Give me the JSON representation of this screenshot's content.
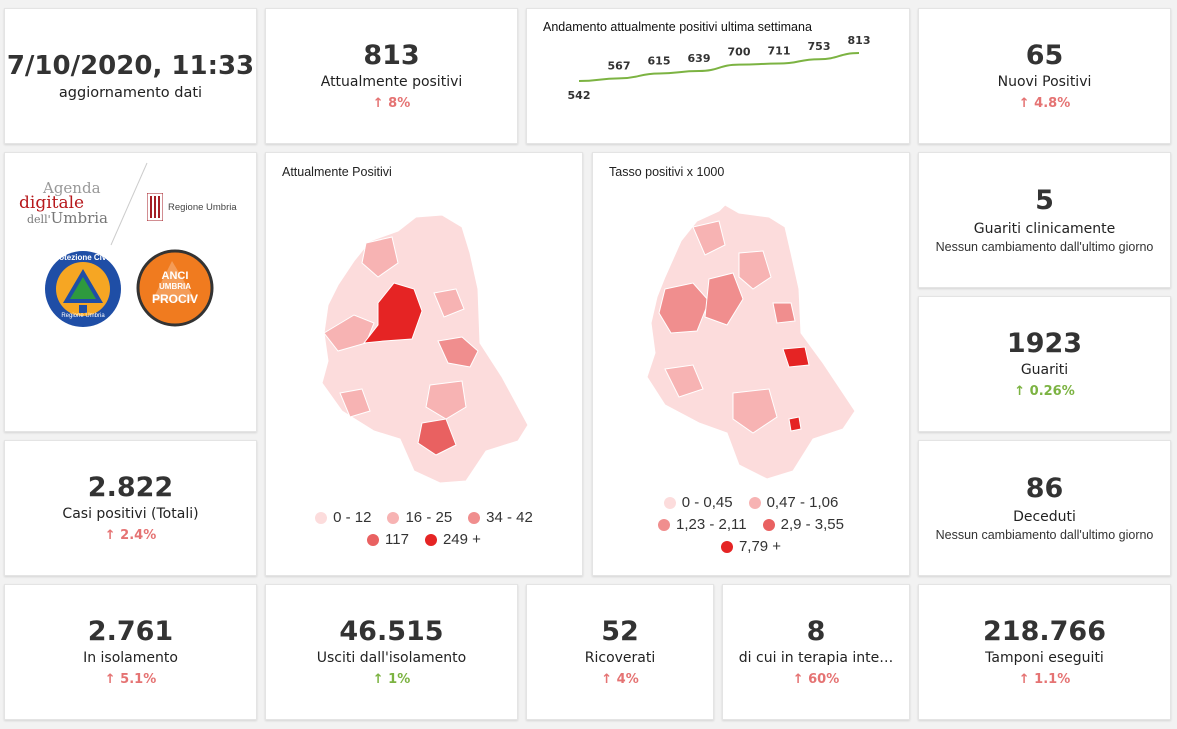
{
  "update": {
    "datetime": "7/10/2020, 11:33",
    "label": "aggiornamento dati"
  },
  "kpi": {
    "attualmente_positivi": {
      "value": "813",
      "label": "Attualmente positivi",
      "change": "↑ 8%"
    },
    "nuovi_positivi": {
      "value": "65",
      "label": "Nuovi Positivi",
      "change": "↑ 4.8%"
    },
    "guariti_clinicamente": {
      "value": "5",
      "label": "Guariti clinicamente",
      "sub": "Nessun cambiamento dall'ultimo giorno"
    },
    "guariti": {
      "value": "1923",
      "label": "Guariti",
      "change": "↑ 0.26%"
    },
    "casi_totali": {
      "value": "2.822",
      "label": "Casi positivi (Totali)",
      "change": "↑ 2.4%"
    },
    "deceduti": {
      "value": "86",
      "label": "Deceduti",
      "sub": "Nessun cambiamento dall'ultimo giorno"
    },
    "isolamento": {
      "value": "2.761",
      "label": "In isolamento",
      "change": "↑ 5.1%"
    },
    "usciti": {
      "value": "46.515",
      "label": "Usciti dall'isolamento",
      "change": "↑ 1%"
    },
    "ricoverati": {
      "value": "52",
      "label": "Ricoverati",
      "change": "↑ 4%"
    },
    "terapia": {
      "value": "8",
      "label": "di cui in terapia inte…",
      "change": "↑ 60%"
    },
    "tamponi": {
      "value": "218.766",
      "label": "Tamponi eseguiti",
      "change": "↑ 1.1%"
    }
  },
  "logos": {
    "agenda_line1": "Agenda",
    "agenda_line2": "digitale",
    "agenda_line3": "dell'",
    "agenda_line3b": "Umbria",
    "regione": "Regione Umbria",
    "protezione_top": "Protezione Civile",
    "protezione_bottom": "Regione Umbria",
    "anci_1": "ANCI",
    "anci_2": "UMBRIA",
    "anci_3": "PROCIV"
  },
  "maps": {
    "positivi": {
      "title": "Attualmente Positivi",
      "legend": [
        {
          "label": "0 - 12",
          "color": "#fcdcdc"
        },
        {
          "label": "16 - 25",
          "color": "#f7b3b3"
        },
        {
          "label": "34 - 42",
          "color": "#f08e8e"
        },
        {
          "label": "117",
          "color": "#e96161"
        },
        {
          "label": "249 +",
          "color": "#e52424"
        }
      ]
    },
    "tasso": {
      "title": "Tasso positivi x 1000",
      "legend": [
        {
          "label": "0 - 0,45",
          "color": "#fcdcdc"
        },
        {
          "label": "0,47 - 1,06",
          "color": "#f7b3b3"
        },
        {
          "label": "1,23 - 2,11",
          "color": "#f08e8e"
        },
        {
          "label": "2,9 - 3,55",
          "color": "#e96161"
        },
        {
          "label": "7,79 +",
          "color": "#e52424"
        }
      ]
    }
  },
  "chart_data": {
    "type": "line",
    "title": "Andamento attualmente positivi ultima settimana",
    "x": [
      1,
      2,
      3,
      4,
      5,
      6,
      7,
      8
    ],
    "series": [
      {
        "values": [
          542,
          567,
          615,
          639,
          700,
          711,
          753,
          813
        ]
      }
    ],
    "data_labels": [
      "542",
      "567",
      "615",
      "639",
      "700",
      "711",
      "753",
      "813"
    ],
    "line_color": "#7cb342",
    "xlabel": "",
    "ylabel": "",
    "grid": false
  }
}
